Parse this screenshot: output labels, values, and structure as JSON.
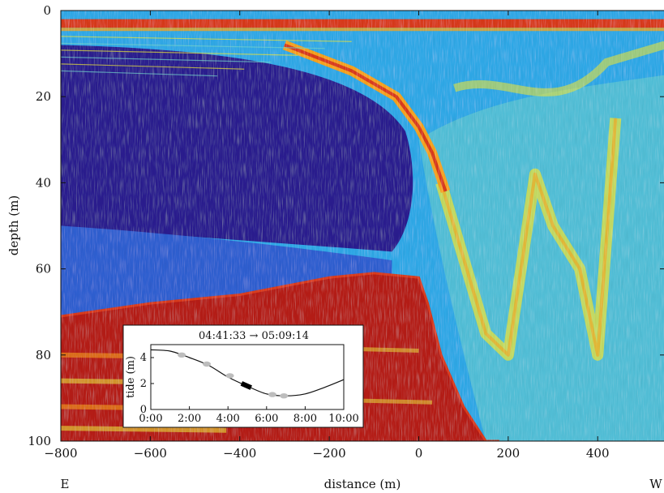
{
  "chart_data": [
    {
      "type": "heatmap",
      "xlabel": "distance (m)",
      "ylabel": "depth (m)",
      "xlim": [
        -800,
        550
      ],
      "ylim": [
        100,
        0
      ],
      "x_ticks": [
        -800,
        -600,
        -400,
        -200,
        0,
        200,
        400
      ],
      "x_tick_labels": [
        "−800",
        "−600",
        "−400",
        "−200",
        "0",
        "200",
        "400"
      ],
      "y_ticks": [
        0,
        20,
        40,
        60,
        80,
        100
      ],
      "y_tick_labels": [
        "0",
        "20",
        "40",
        "60",
        "80",
        "100"
      ],
      "left_end_label": "E",
      "right_end_label": "W",
      "colormap": [
        "#2a1f8f",
        "#2f5fd0",
        "#2fa8e6",
        "#6fd0c8",
        "#e8e23a",
        "#f5a21a",
        "#d83a1a",
        "#b51e16"
      ],
      "seabed_depth_profile": {
        "x": [
          -800,
          -600,
          -400,
          -300,
          -200,
          -100,
          0,
          20,
          50,
          100,
          150,
          180
        ],
        "depth": [
          71,
          68,
          66,
          64,
          62,
          61,
          62,
          68,
          80,
          92,
          100,
          100
        ]
      },
      "surface_band_depth": [
        2,
        4
      ],
      "strong_layer": {
        "x": [
          -300,
          -150,
          -50,
          0,
          30,
          60
        ],
        "depth": [
          8,
          14,
          20,
          27,
          33,
          42
        ]
      },
      "wave_crest_depths": {
        "x": [
          50,
          150,
          200,
          260,
          300,
          360,
          400,
          440
        ],
        "depth": [
          40,
          75,
          80,
          38,
          50,
          60,
          80,
          25
        ]
      }
    },
    {
      "type": "line",
      "title": "04:41:33 → 05:09:14",
      "xlabel": "",
      "ylabel": "tide (m)",
      "xlim": [
        0,
        10
      ],
      "ylim": [
        0,
        5
      ],
      "x_ticks": [
        0,
        2,
        4,
        6,
        8,
        10
      ],
      "x_tick_labels": [
        "0:00",
        "2:00",
        "4:00",
        "6:00",
        "8:00",
        "10:00"
      ],
      "y_ticks": [
        0,
        2,
        4
      ],
      "y_tick_labels": [
        "0",
        "2",
        "4"
      ],
      "series": [
        {
          "x": [
            0,
            1,
            2,
            3,
            4,
            5,
            6,
            7,
            8,
            9,
            10
          ],
          "values": [
            4.6,
            4.5,
            4.0,
            3.4,
            2.5,
            1.8,
            1.2,
            1.05,
            1.2,
            1.7,
            2.3
          ]
        }
      ],
      "markers": {
        "x": [
          1.6,
          2.9,
          4.1,
          6.3,
          6.9
        ],
        "values": [
          4.2,
          3.5,
          2.6,
          1.15,
          1.05
        ],
        "color": "#bdbdbd"
      },
      "highlight": {
        "x_start": 4.7,
        "x_end": 5.2,
        "color": "#000000"
      }
    }
  ]
}
